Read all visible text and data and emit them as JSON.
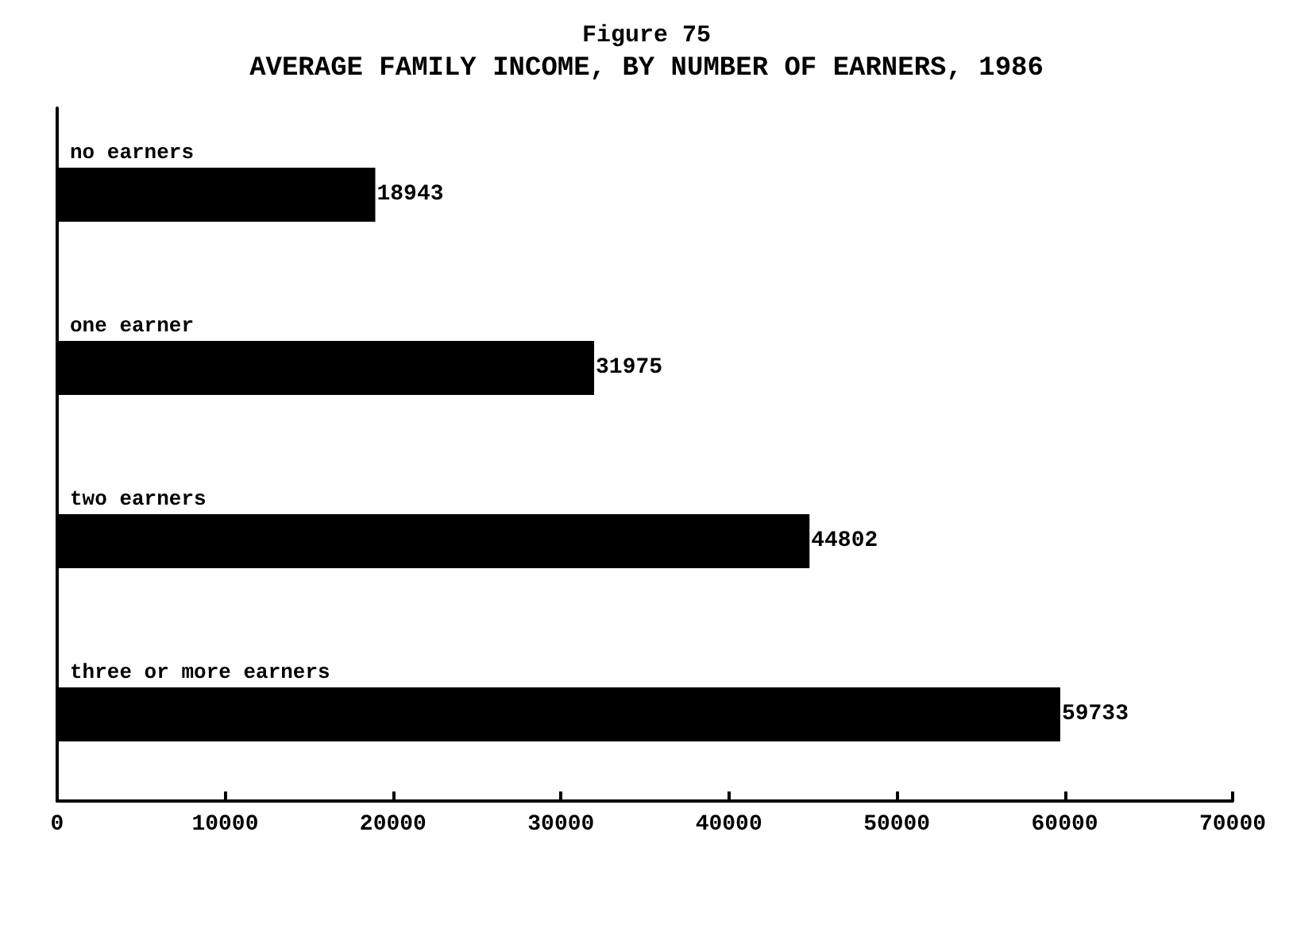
{
  "chart_data": {
    "type": "bar",
    "orientation": "horizontal",
    "title": "Figure 75",
    "subtitle": "AVERAGE FAMILY INCOME, BY NUMBER OF EARNERS, 1986",
    "categories": [
      "no earners",
      "one earner",
      "two earners",
      "three or more earners"
    ],
    "values": [
      18943,
      31975,
      44802,
      59733
    ],
    "color": "#000000",
    "xlim": [
      0,
      70000
    ],
    "xticks": [
      0,
      10000,
      20000,
      30000,
      40000,
      50000,
      60000,
      70000
    ],
    "grid": false,
    "data_labels": true
  }
}
